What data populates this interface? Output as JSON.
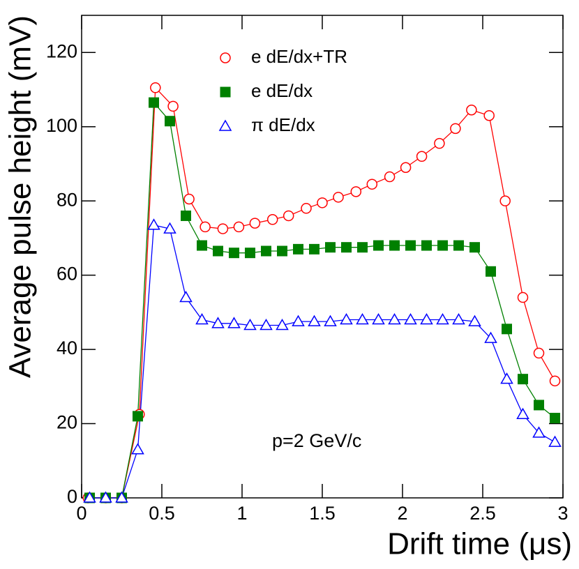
{
  "chart_data": {
    "type": "line",
    "x_label": "Drift time (μs)",
    "y_label": "Average pulse height (mV)",
    "annotation": "p=2 GeV/c",
    "xlim": [
      0,
      3
    ],
    "ylim": [
      0,
      130
    ],
    "xticks": [
      0,
      0.5,
      1,
      1.5,
      2,
      2.5,
      3
    ],
    "yticks": [
      0,
      20,
      40,
      60,
      80,
      100,
      120
    ],
    "series": [
      {
        "name": "e dE/dx+TR",
        "color": "#ff0000",
        "marker": "open-circle",
        "x": [
          0.04,
          0.15,
          0.25,
          0.36,
          0.46,
          0.57,
          0.67,
          0.77,
          0.88,
          0.98,
          1.08,
          1.19,
          1.29,
          1.4,
          1.5,
          1.6,
          1.71,
          1.81,
          1.92,
          2.02,
          2.12,
          2.23,
          2.33,
          2.43,
          2.54,
          2.64,
          2.75,
          2.85,
          2.95
        ],
        "values": [
          0,
          0,
          0,
          22.5,
          110.5,
          105.5,
          80.5,
          73,
          72.5,
          73,
          74,
          75,
          76,
          78,
          79.5,
          81,
          82.5,
          84.5,
          86.5,
          89,
          92,
          95.5,
          99.5,
          104.5,
          103,
          80,
          54,
          39,
          31.5
        ]
      },
      {
        "name": "e dE/dx",
        "color": "#008000",
        "marker": "filled-square",
        "x": [
          0.05,
          0.15,
          0.25,
          0.35,
          0.45,
          0.55,
          0.65,
          0.75,
          0.85,
          0.95,
          1.05,
          1.15,
          1.25,
          1.35,
          1.45,
          1.55,
          1.65,
          1.75,
          1.85,
          1.95,
          2.05,
          2.15,
          2.25,
          2.35,
          2.45,
          2.55,
          2.65,
          2.75,
          2.85,
          2.95
        ],
        "values": [
          0,
          0,
          0,
          22,
          106.5,
          101.5,
          76,
          68,
          66.5,
          66,
          66,
          66.5,
          66.5,
          67,
          67,
          67.5,
          67.5,
          67.5,
          68,
          68,
          68,
          68,
          68,
          68,
          67.5,
          61,
          45.5,
          32,
          25,
          21.5
        ]
      },
      {
        "name": "π dE/dx",
        "color": "#0000ff",
        "marker": "open-triangle",
        "x": [
          0.05,
          0.15,
          0.25,
          0.35,
          0.45,
          0.55,
          0.65,
          0.75,
          0.85,
          0.95,
          1.05,
          1.15,
          1.25,
          1.35,
          1.45,
          1.55,
          1.65,
          1.75,
          1.85,
          1.95,
          2.05,
          2.15,
          2.25,
          2.35,
          2.45,
          2.55,
          2.65,
          2.75,
          2.85,
          2.95
        ],
        "values": [
          0,
          0,
          0,
          13,
          73.5,
          72.5,
          54,
          48,
          47,
          47,
          46.5,
          46.5,
          46.5,
          47.5,
          47.5,
          47.5,
          48,
          48,
          48,
          48,
          48,
          48,
          48,
          48,
          47.5,
          43,
          32,
          22.5,
          17.5,
          15
        ]
      }
    ]
  }
}
